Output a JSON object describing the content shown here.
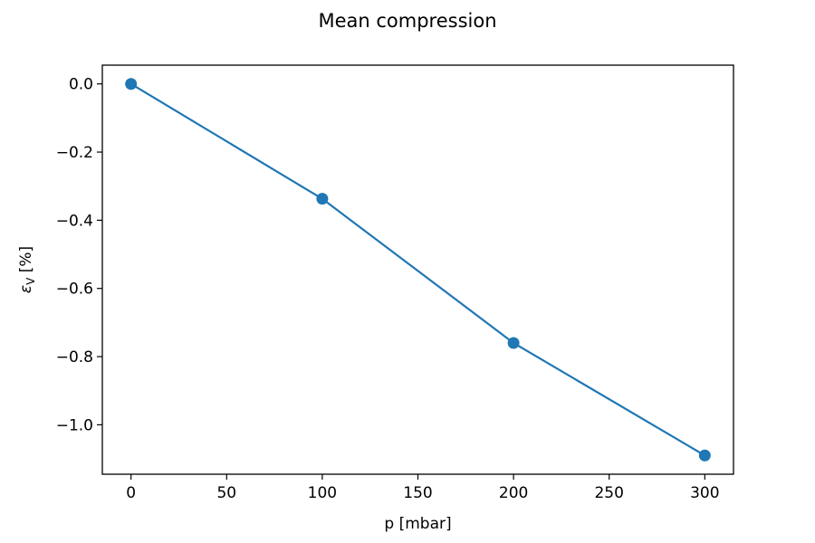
{
  "chart_data": {
    "type": "line",
    "title": "Mean compression",
    "xlabel": "p [mbar]",
    "ylabel_symbol": "ε",
    "ylabel_subscript": "V",
    "ylabel_unit": " [%]",
    "xlim": [
      -15,
      315
    ],
    "ylim": [
      -1.145,
      0.055
    ],
    "x_ticks": [
      0,
      50,
      100,
      150,
      200,
      250,
      300
    ],
    "y_ticks": [
      0.0,
      -0.2,
      -0.4,
      -0.6,
      -0.8,
      -1.0
    ],
    "y_tick_labels": [
      "0.0",
      "−0.2",
      "−0.4",
      "−0.6",
      "−0.8",
      "−1.0"
    ],
    "grid": false,
    "series": [
      {
        "x": [
          0,
          100,
          200,
          300
        ],
        "y": [
          0.0,
          -0.337,
          -0.76,
          -1.09
        ],
        "color": "#1f77b4",
        "marker": "circle"
      }
    ]
  }
}
